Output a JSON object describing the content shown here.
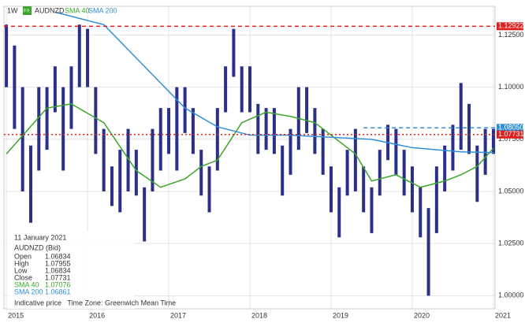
{
  "chart_data": {
    "type": "range",
    "symbol": "AUDNZD",
    "interval": "1W",
    "badge": "FX",
    "x": [
      2015.0,
      2015.1,
      2015.2,
      2015.3,
      2015.4,
      2015.5,
      2015.6,
      2015.7,
      2015.8,
      2015.9,
      2016.0,
      2016.1,
      2016.2,
      2016.3,
      2016.4,
      2016.5,
      2016.6,
      2016.7,
      2016.8,
      2016.9,
      2017.0,
      2017.1,
      2017.2,
      2017.3,
      2017.4,
      2017.5,
      2017.6,
      2017.7,
      2017.8,
      2017.9,
      2018.0,
      2018.1,
      2018.2,
      2018.3,
      2018.4,
      2018.5,
      2018.6,
      2018.7,
      2018.8,
      2018.9,
      2019.0,
      2019.1,
      2019.2,
      2019.3,
      2019.4,
      2019.5,
      2019.6,
      2019.7,
      2019.8,
      2019.9,
      2020.0,
      2020.1,
      2020.2,
      2020.3,
      2020.4,
      2020.5,
      2020.6,
      2020.7,
      2020.8,
      2020.9,
      2021.0
    ],
    "high": [
      1.13,
      1.12,
      1.1,
      1.072,
      1.1,
      1.1,
      1.11,
      1.1,
      1.11,
      1.13,
      1.128,
      1.1,
      1.08,
      1.062,
      1.07,
      1.08,
      1.07,
      1.052,
      1.08,
      1.09,
      1.09,
      1.1,
      1.1,
      1.09,
      1.07,
      1.062,
      1.09,
      1.11,
      1.128,
      1.11,
      1.11,
      1.092,
      1.09,
      1.09,
      1.072,
      1.08,
      1.1,
      1.1,
      1.09,
      1.08,
      1.062,
      1.052,
      1.07,
      1.08,
      1.062,
      1.052,
      1.07,
      1.082,
      1.08,
      1.07,
      1.062,
      1.052,
      1.042,
      1.062,
      1.072,
      1.082,
      1.102,
      1.092,
      1.072,
      1.08,
      1.08
    ],
    "low": [
      1.1,
      1.08,
      1.05,
      1.035,
      1.06,
      1.07,
      1.088,
      1.06,
      1.08,
      1.1,
      1.1,
      1.068,
      1.05,
      1.043,
      1.04,
      1.05,
      1.048,
      1.026,
      1.05,
      1.06,
      1.068,
      1.06,
      1.078,
      1.068,
      1.048,
      1.04,
      1.06,
      1.088,
      1.105,
      1.088,
      1.088,
      1.068,
      1.07,
      1.068,
      1.048,
      1.058,
      1.07,
      1.078,
      1.068,
      1.058,
      1.04,
      1.028,
      1.048,
      1.05,
      1.04,
      1.03,
      1.048,
      1.065,
      1.058,
      1.048,
      1.04,
      1.028,
      1.0,
      1.03,
      1.05,
      1.06,
      1.07,
      1.068,
      1.045,
      1.058,
      1.068
    ],
    "bar_color": "#2a2f8a",
    "series": [
      {
        "name": "SMA 40",
        "color": "#3aa62a",
        "x": [
          2015.0,
          2015.5,
          2015.8,
          2016.2,
          2016.6,
          2016.9,
          2017.2,
          2017.4,
          2017.6,
          2017.9,
          2018.2,
          2018.5,
          2018.8,
          2019.0,
          2019.3,
          2019.5,
          2019.8,
          2020.1,
          2020.4,
          2020.6,
          2020.8,
          2021.0
        ],
        "values": [
          1.068,
          1.09,
          1.092,
          1.083,
          1.06,
          1.052,
          1.056,
          1.062,
          1.065,
          1.083,
          1.088,
          1.086,
          1.083,
          1.077,
          1.068,
          1.055,
          1.058,
          1.052,
          1.055,
          1.058,
          1.062,
          1.07076
        ]
      },
      {
        "name": "SMA 200",
        "color": "#2f8fd8",
        "x": [
          2015.6,
          2016.2,
          2016.75,
          2017.2,
          2017.6,
          2018.0,
          2018.5,
          2019.0,
          2019.5,
          2020.0,
          2020.3,
          2020.6,
          2021.0
        ],
        "values": [
          1.136,
          1.13,
          1.108,
          1.09,
          1.081,
          1.077,
          1.077,
          1.076,
          1.075,
          1.071,
          1.07,
          1.069,
          1.06861
        ]
      }
    ],
    "hlines": [
      {
        "value": 1.12922,
        "label": "1.12922",
        "color": "#e02020",
        "dash": "5,4",
        "from": 2014.97
      },
      {
        "value": 1.0805,
        "label": "1.08050",
        "color": "#2f8fd8",
        "dash": "5,4",
        "from": 2019.4
      },
      {
        "value": 1.07731,
        "label": "1.07731",
        "color": "#e02020",
        "dash": "2,3",
        "from": 2014.97
      }
    ],
    "xlim": [
      2014.97,
      2021.02
    ],
    "ylim": [
      0.9937,
      1.1388
    ],
    "xticks": [
      2015,
      2016,
      2017,
      2018,
      2019,
      2020,
      2021
    ],
    "yticks": [
      {
        "value": 1.0,
        "label": "1.00000"
      },
      {
        "value": 1.025,
        "label": "1.02500"
      },
      {
        "value": 1.05,
        "label": "1.05000"
      },
      {
        "value": 1.075,
        "label": "1.07500"
      },
      {
        "value": 1.1,
        "label": "1.10000"
      },
      {
        "value": 1.125,
        "label": "1.12500"
      }
    ],
    "grid": true,
    "info": {
      "date": "11 January 2021",
      "title": "AUDNZD (Bid)",
      "rows": [
        [
          "Open",
          "1.06834"
        ],
        [
          "High",
          "1.07955"
        ],
        [
          "Low",
          "1.06834"
        ],
        [
          "Close",
          "1.07731"
        ],
        [
          "SMA 40",
          "1.07076"
        ],
        [
          "SMA 200",
          "1.06861"
        ]
      ],
      "footer": "Indicative price   Time Zone: Greenwich Mean Time"
    }
  }
}
